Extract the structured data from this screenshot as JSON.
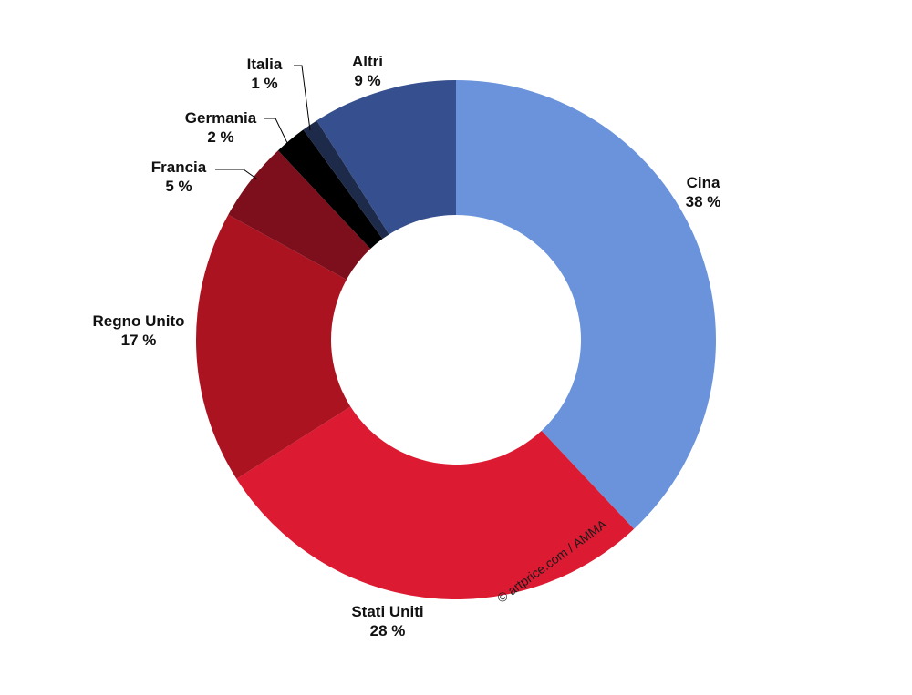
{
  "chart_data": {
    "type": "pie",
    "variant": "donut",
    "categories": [
      "Cina",
      "Stati Uniti",
      "Regno Unito",
      "Francia",
      "Germania",
      "Italia",
      "Altri"
    ],
    "values": [
      38,
      28,
      17,
      5,
      2,
      1,
      9
    ],
    "value_labels": [
      "38 %",
      "28 %",
      "17 %",
      "5 %",
      "2 %",
      "1 %",
      "9 %"
    ],
    "colors": [
      "#6a93db",
      "#dc1a32",
      "#ac1320",
      "#7c0f1b",
      "#000000",
      "#1e2a4a",
      "#364f8e"
    ],
    "legend": "none",
    "credit": "© artprice.com / AMMA"
  }
}
